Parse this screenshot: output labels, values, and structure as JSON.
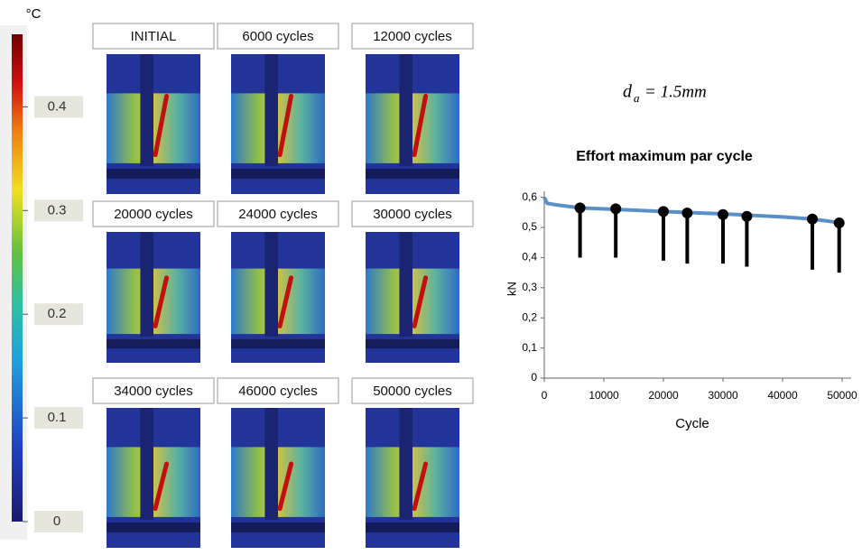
{
  "colorbar": {
    "unit": "°C",
    "lim": [
      0,
      0.47
    ],
    "ticks": [
      0,
      0.1,
      0.2,
      0.3,
      0.4
    ]
  },
  "images": [
    {
      "label": "INITIAL"
    },
    {
      "label": "6000 cycles"
    },
    {
      "label": "12000 cycles"
    },
    {
      "label": "20000 cycles"
    },
    {
      "label": "24000 cycles"
    },
    {
      "label": "30000 cycles"
    },
    {
      "label": "34000 cycles"
    },
    {
      "label": "46000 cycles"
    },
    {
      "label": "50000 cycles"
    }
  ],
  "annotation": {
    "symbol": "d",
    "subscript": "a",
    "text": "= 1.5mm"
  },
  "chart_data": {
    "type": "line",
    "title": "Effort maximum par cycle",
    "x_label": "Cycle",
    "y_label": "kN",
    "color": "#5b8fc7",
    "x": [
      0,
      500,
      2000,
      6000,
      12000,
      20000,
      30000,
      40000,
      45000,
      50000
    ],
    "values": [
      0.6,
      0.58,
      0.575,
      0.565,
      0.56,
      0.553,
      0.545,
      0.535,
      0.528,
      0.515
    ],
    "markers": {
      "x": [
        6000,
        12000,
        20000,
        24000,
        30000,
        34000,
        45000,
        49500
      ],
      "values": [
        0.565,
        0.562,
        0.553,
        0.548,
        0.543,
        0.537,
        0.528,
        0.515
      ],
      "stem_to": [
        0.4,
        0.4,
        0.39,
        0.38,
        0.38,
        0.37,
        0.36,
        0.35
      ]
    },
    "xlim": [
      0,
      50000
    ],
    "ylim": [
      0,
      0.62
    ],
    "xticks": [
      0,
      10000,
      20000,
      30000,
      40000,
      50000
    ],
    "yticks": [
      0,
      {
        "value": 0.1,
        "label": "0,1"
      },
      {
        "value": 0.2,
        "label": "0,2"
      },
      {
        "value": 0.3,
        "label": "0,3"
      },
      {
        "value": 0.4,
        "label": "0,4"
      },
      {
        "value": 0.5,
        "label": "0,5"
      },
      {
        "value": 0.6,
        "label": "0,6"
      }
    ]
  }
}
